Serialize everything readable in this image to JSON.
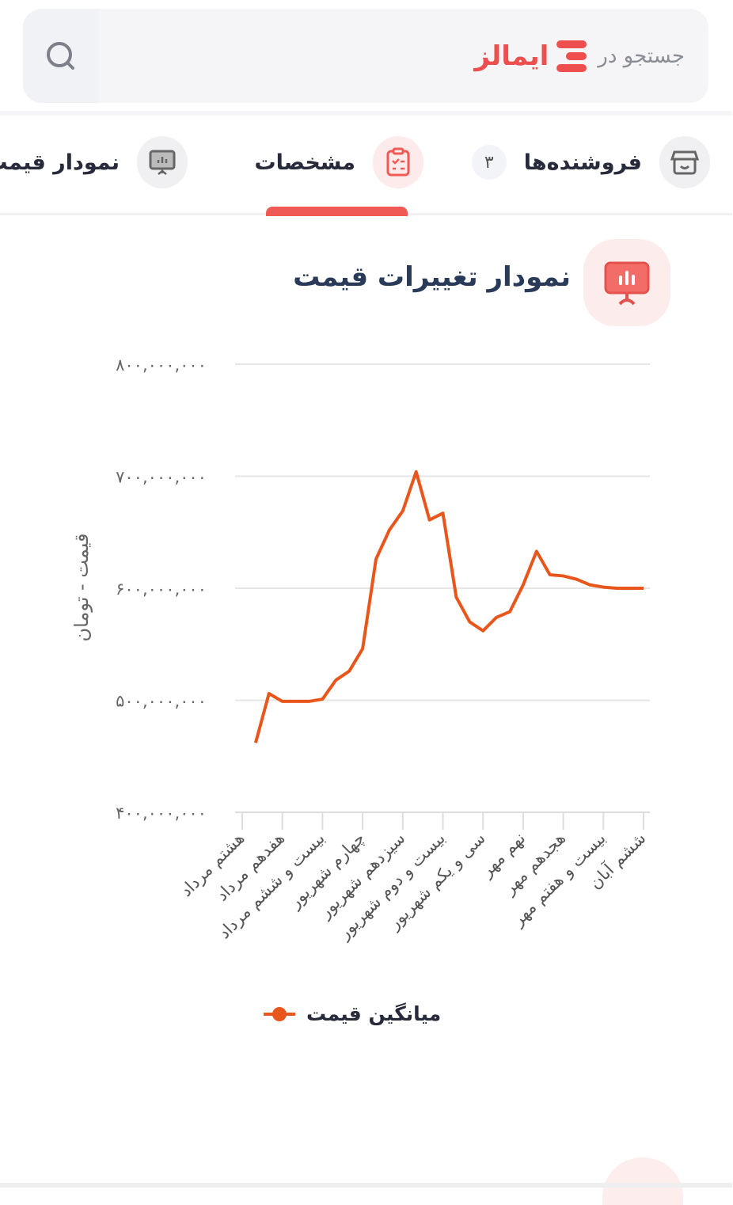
{
  "search": {
    "placeholder": "جستجو در",
    "brand": "ایمالز",
    "icon": "search-icon"
  },
  "tabs": [
    {
      "label": "فروشنده‌ها",
      "badge": "۳",
      "icon": "store-icon",
      "active": false
    },
    {
      "label": "مشخصات",
      "icon": "clipboard-icon",
      "active": true
    },
    {
      "label": "نمودار قیمت",
      "icon": "chart-presentation-icon",
      "active": false
    }
  ],
  "section": {
    "title": "نمودار تغییرات قیمت",
    "icon": "chart-presentation-icon"
  },
  "colors": {
    "accent": "#ef4e4e",
    "line": "#e8561c",
    "title": "#2a3b5a"
  },
  "chart_data": {
    "type": "line",
    "ylabel": "قیمت - تومان",
    "ylim": [
      400000000,
      800000000
    ],
    "yticks": [
      {
        "value": 800000000,
        "label": "۸۰۰,۰۰۰,۰۰۰"
      },
      {
        "value": 700000000,
        "label": "۷۰۰,۰۰۰,۰۰۰"
      },
      {
        "value": 600000000,
        "label": "۶۰۰,۰۰۰,۰۰۰"
      },
      {
        "value": 500000000,
        "label": "۵۰۰,۰۰۰,۰۰۰"
      },
      {
        "value": 400000000,
        "label": "۴۰۰,۰۰۰,۰۰۰"
      }
    ],
    "xtick_labels": [
      "هشتم مرداد",
      "هفدهم مرداد",
      "بیست و ششم مرداد",
      "چهارم شهریور",
      "سیزدهم شهریور",
      "بیست و دوم شهریور",
      "سی و یکم شهریور",
      "نهم مهر",
      "هجدهم مهر",
      "بیست و هفتم مهر",
      "ششم آبان"
    ],
    "grid": true,
    "legend_position": "bottom",
    "series": [
      {
        "name": "میانگین قیمت",
        "color": "#e8561c",
        "values": [
          462000000,
          506000000,
          499000000,
          499000000,
          499000000,
          501000000,
          518000000,
          526000000,
          546000000,
          626000000,
          652000000,
          669000000,
          704000000,
          661000000,
          667000000,
          592000000,
          570000000,
          562000000,
          574000000,
          579000000,
          603000000,
          633000000,
          612000000,
          611000000,
          608000000,
          603000000,
          601000000,
          600000000,
          600000000,
          600000000
        ]
      }
    ]
  }
}
